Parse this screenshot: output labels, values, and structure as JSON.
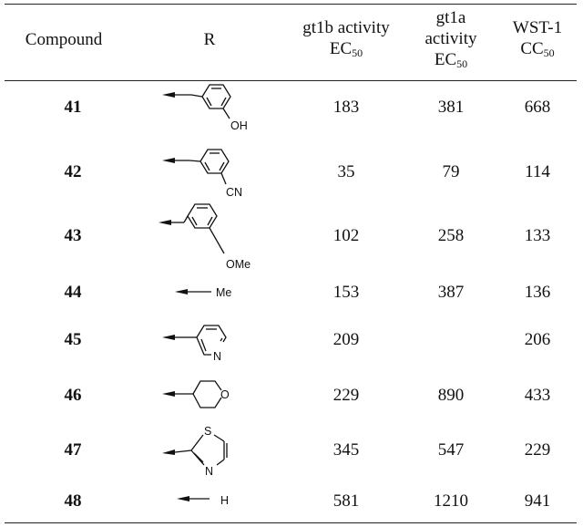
{
  "header": {
    "compound": "Compound",
    "r": "R",
    "gt1b": {
      "line1": "gt1b activity",
      "base": "EC",
      "sub": "50"
    },
    "gt1a": {
      "line1": "gt1a",
      "line2": "activity",
      "base": "EC",
      "sub": "50"
    },
    "wst": {
      "line1": "WST-1",
      "base": "CC",
      "sub": "50"
    }
  },
  "rows": [
    {
      "compound": "41",
      "substituent": "OH",
      "gt1b": "183",
      "gt1a": "381",
      "wst": "668"
    },
    {
      "compound": "42",
      "substituent": "CN",
      "gt1b": "35",
      "gt1a": "79",
      "wst": "114"
    },
    {
      "compound": "43",
      "substituent": "OMe",
      "gt1b": "102",
      "gt1a": "258",
      "wst": "133"
    },
    {
      "compound": "44",
      "substituent": "Me",
      "gt1b": "153",
      "gt1a": "387",
      "wst": "136"
    },
    {
      "compound": "45",
      "substituent": "N",
      "gt1b": "209",
      "gt1a": "",
      "wst": "206"
    },
    {
      "compound": "46",
      "substituent": "O",
      "gt1b": "229",
      "gt1a": "890",
      "wst": "433"
    },
    {
      "compound": "47",
      "substituent": [
        "S",
        "N"
      ],
      "gt1b": "345",
      "gt1a": "547",
      "wst": "229"
    },
    {
      "compound": "48",
      "substituent": "H",
      "gt1b": "581",
      "gt1a": "1210",
      "wst": "941"
    }
  ]
}
